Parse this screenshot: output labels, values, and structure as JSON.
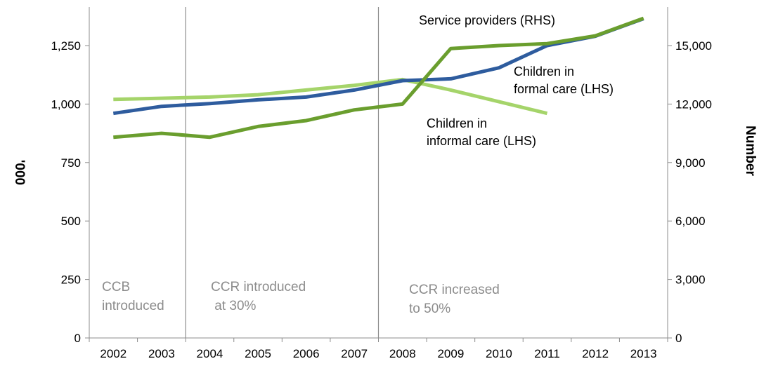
{
  "chart_data": {
    "type": "line",
    "categories": [
      "2002",
      "2003",
      "2004",
      "2005",
      "2006",
      "2007",
      "2008",
      "2009",
      "2010",
      "2011",
      "2012",
      "2013"
    ],
    "y_left": {
      "label": "'000",
      "range": [
        0,
        1250
      ],
      "ticks": [
        0,
        250,
        500,
        750,
        1000,
        1250
      ],
      "tick_labels": [
        "0",
        "250",
        "500",
        "750",
        "1,000",
        "1,250"
      ]
    },
    "y_right": {
      "label": "Number",
      "range": [
        0,
        15000
      ],
      "ticks": [
        0,
        3000,
        6000,
        9000,
        12000,
        15000
      ],
      "tick_labels": [
        "0",
        "3,000",
        "6,000",
        "9,000",
        "12,000",
        "15,000"
      ]
    },
    "series": [
      {
        "name": "Children in informal care (LHS)",
        "label_lines": [
          "Children in",
          "informal care (LHS)"
        ],
        "axis": "left",
        "color": "#a5d46a",
        "values": [
          1020,
          1025,
          1030,
          1040,
          1060,
          1080,
          1105,
          1060,
          1010,
          960,
          null,
          null
        ]
      },
      {
        "name": "Children in formal care (LHS)",
        "label_lines": [
          "Children in",
          "formal care (LHS)"
        ],
        "axis": "left",
        "color": "#2e5c9e",
        "values": [
          960,
          990,
          1002,
          1018,
          1030,
          1060,
          1100,
          1108,
          1155,
          1250,
          1290,
          1365
        ]
      },
      {
        "name": "Service providers (RHS)",
        "label_lines": [
          "Service providers (RHS)"
        ],
        "axis": "right",
        "color": "#6a9e2e",
        "values": [
          10300,
          10500,
          10300,
          10850,
          11150,
          11700,
          12000,
          14850,
          15000,
          15100,
          15500,
          16400
        ]
      }
    ],
    "events": [
      {
        "category_index": 0,
        "lines": [
          "CCB",
          "introduced"
        ],
        "has_line": false
      },
      {
        "category_index": 2,
        "lines": [
          "CCR introduced",
          " at 30%"
        ],
        "has_line": true
      },
      {
        "category_index": 6,
        "lines": [
          "CCR increased",
          "to 50%"
        ],
        "has_line": true
      }
    ],
    "grid": false,
    "legend": "inline labels"
  }
}
